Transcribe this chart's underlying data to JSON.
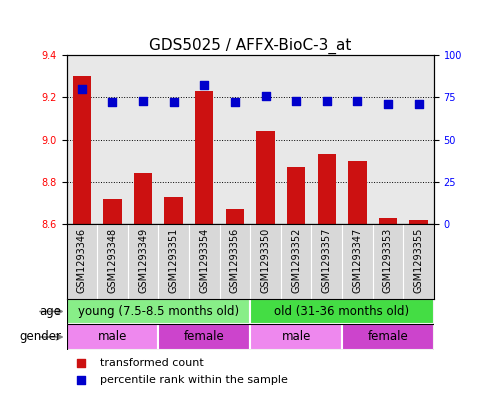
{
  "title": "GDS5025 / AFFX-BioC-3_at",
  "samples": [
    "GSM1293346",
    "GSM1293348",
    "GSM1293349",
    "GSM1293351",
    "GSM1293354",
    "GSM1293356",
    "GSM1293350",
    "GSM1293352",
    "GSM1293357",
    "GSM1293347",
    "GSM1293353",
    "GSM1293355"
  ],
  "transformed_count": [
    9.3,
    8.72,
    8.84,
    8.73,
    9.23,
    8.67,
    9.04,
    8.87,
    8.93,
    8.9,
    8.63,
    8.62
  ],
  "percentile_rank": [
    80,
    72,
    73,
    72,
    82,
    72,
    76,
    73,
    73,
    73,
    71,
    71
  ],
  "ylim_left": [
    8.6,
    9.4
  ],
  "ylim_right": [
    0,
    100
  ],
  "yticks_left": [
    8.6,
    8.8,
    9.0,
    9.2,
    9.4
  ],
  "yticks_right": [
    0,
    25,
    50,
    75,
    100
  ],
  "bar_color": "#cc1111",
  "dot_color": "#0000cc",
  "bar_bottom": 8.6,
  "age_groups": [
    {
      "label": "young (7.5-8.5 months old)",
      "start": 0,
      "end": 6,
      "color": "#88ee88"
    },
    {
      "label": "old (31-36 months old)",
      "start": 6,
      "end": 12,
      "color": "#44dd44"
    }
  ],
  "gender_groups": [
    {
      "label": "male",
      "start": 0,
      "end": 3,
      "color": "#ee88ee"
    },
    {
      "label": "female",
      "start": 3,
      "end": 6,
      "color": "#cc44cc"
    },
    {
      "label": "male",
      "start": 6,
      "end": 9,
      "color": "#ee88ee"
    },
    {
      "label": "female",
      "start": 9,
      "end": 12,
      "color": "#cc44cc"
    }
  ],
  "legend_items": [
    {
      "label": "transformed count",
      "color": "#cc1111"
    },
    {
      "label": "percentile rank within the sample",
      "color": "#0000cc"
    }
  ],
  "bar_width": 0.6,
  "dot_size": 35,
  "tick_label_fontsize": 7,
  "title_fontsize": 11,
  "annotation_fontsize": 8.5,
  "legend_fontsize": 8
}
